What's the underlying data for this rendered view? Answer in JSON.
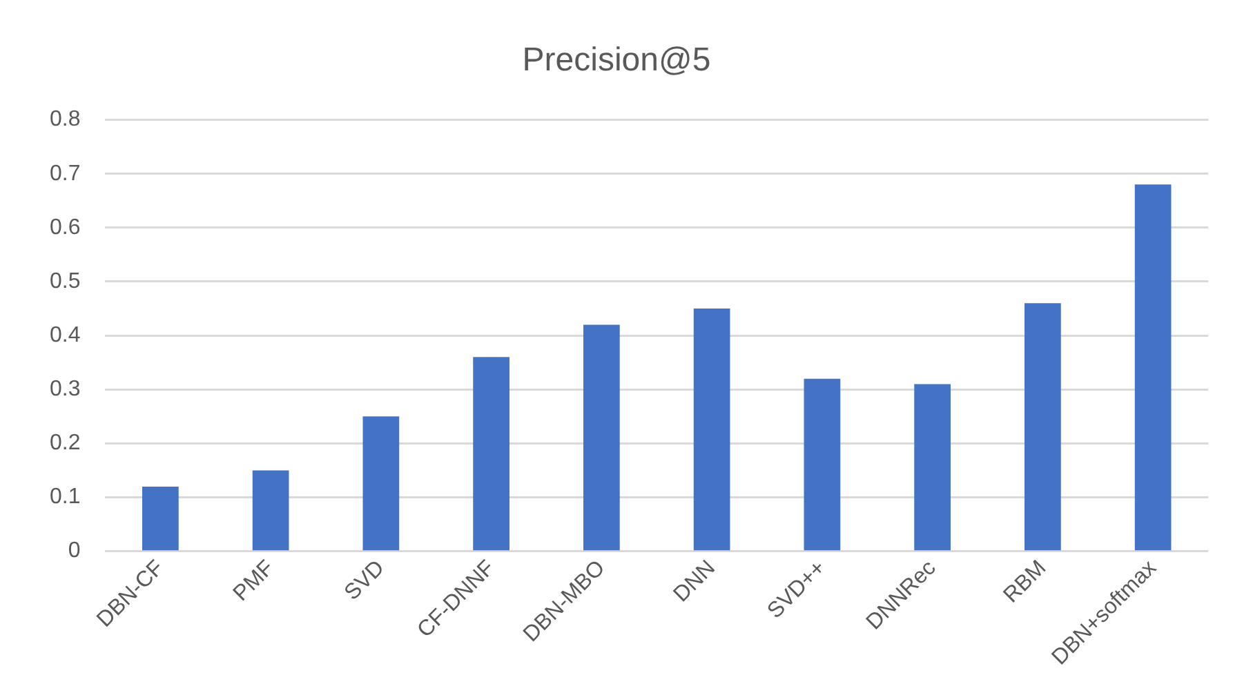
{
  "chart_data": {
    "type": "bar",
    "title": "Precision@5",
    "categories": [
      "DBN-CF",
      "PMF",
      "SVD",
      "CF-DNNF",
      "DBN-MBO",
      "DNN",
      "SVD++",
      "DNNRec",
      "RBM",
      "DBN+softmax"
    ],
    "values": [
      0.12,
      0.15,
      0.25,
      0.36,
      0.42,
      0.45,
      0.32,
      0.31,
      0.46,
      0.68
    ],
    "color": "#4472c4",
    "ylim": [
      0,
      0.8
    ],
    "yticks": [
      0,
      0.1,
      0.2,
      0.3,
      0.4,
      0.5,
      0.6,
      0.7,
      0.8
    ],
    "grid": "y",
    "legend": false
  }
}
